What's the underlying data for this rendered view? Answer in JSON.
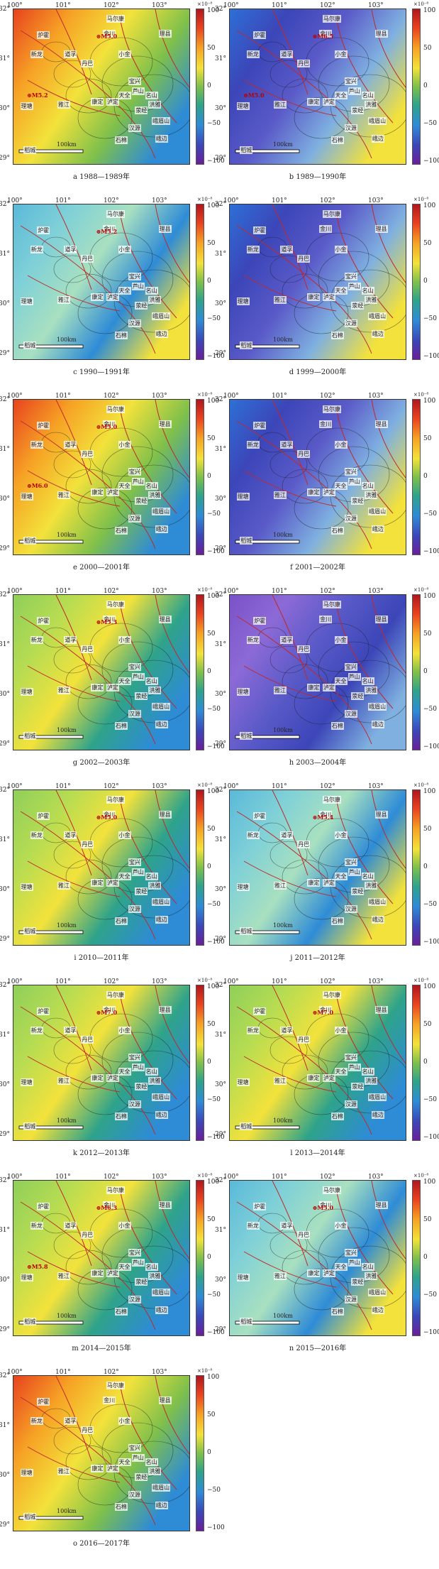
{
  "colorbar": {
    "unit": "×10⁻⁸",
    "ticks": [
      "100",
      "50",
      "0",
      "−50",
      "−100"
    ]
  },
  "lat_ticks": [
    "32°",
    "31°",
    "30°",
    "29°"
  ],
  "lon_ticks": [
    "100°",
    "101°",
    "102°",
    "103°"
  ],
  "scale_label": "100km",
  "places": [
    "马尔康",
    "金川",
    "理县",
    "炉霍",
    "新龙",
    "道孚",
    "丹巴",
    "小金",
    "康定",
    "泸定",
    "雅江",
    "理塘",
    "宝兴",
    "天全",
    "芦山",
    "名山",
    "洪雅",
    "荥经",
    "汉源",
    "峨眉山",
    "石棉",
    "峨边",
    "稻城"
  ],
  "panels": [
    {
      "caption": "a 1988—1989年",
      "quakes": [
        {
          "label": "M5.0"
        },
        {
          "label": "M5.2"
        }
      ],
      "palette": "warm"
    },
    {
      "caption": "b 1989—1990年",
      "quakes": [
        {
          "label": "M6.5"
        },
        {
          "label": "M5.0"
        }
      ],
      "palette": "cold"
    },
    {
      "caption": "c 1990—1991年",
      "quakes": [
        {
          "label": "M5.2"
        }
      ],
      "palette": "cyan"
    },
    {
      "caption": "d 1999—2000年",
      "quakes": [],
      "palette": "cold"
    },
    {
      "caption": "e 2000—2001年",
      "quakes": [
        {
          "label": "M5.0"
        },
        {
          "label": "M6.0"
        }
      ],
      "palette": "warm"
    },
    {
      "caption": "f 2001—2002年",
      "quakes": [],
      "palette": "cold"
    },
    {
      "caption": "g 2002—2003年",
      "quakes": [
        {
          "label": "M5.3"
        }
      ],
      "palette": "green"
    },
    {
      "caption": "h 2003—2004年",
      "quakes": [],
      "palette": "purple"
    },
    {
      "caption": "i 2010—2011年",
      "quakes": [
        {
          "label": "M5.0"
        }
      ],
      "palette": "green"
    },
    {
      "caption": "j 2011—2012年",
      "quakes": [
        {
          "label": "M5.4"
        }
      ],
      "palette": "cyan"
    },
    {
      "caption": "k 2012—2013年",
      "quakes": [
        {
          "label": "M7.0"
        }
      ],
      "palette": "green"
    },
    {
      "caption": "l 2013—2014年",
      "quakes": [
        {
          "label": "M7.0"
        }
      ],
      "palette": "green"
    },
    {
      "caption": "m 2014—2015年",
      "quakes": [
        {
          "label": "M6.3"
        },
        {
          "label": "M5.8"
        }
      ],
      "palette": "green"
    },
    {
      "caption": "n 2015—2016年",
      "quakes": [
        {
          "label": "M5.0"
        }
      ],
      "palette": "cyan"
    },
    {
      "caption": "o 2016—2017年",
      "quakes": [],
      "palette": "warm"
    }
  ]
}
